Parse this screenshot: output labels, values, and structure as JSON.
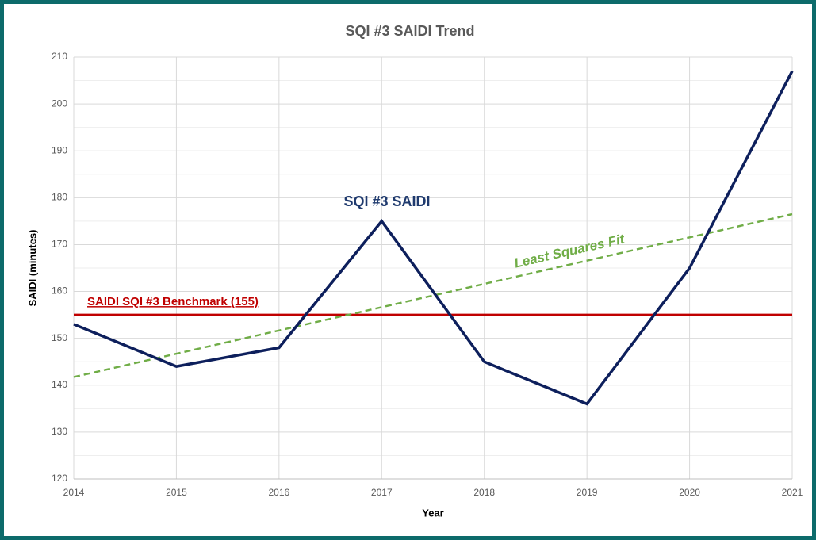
{
  "chart_data": {
    "type": "line",
    "title": "SQI #3 SAIDI Trend",
    "x_label": "Year",
    "y_label": "SAIDI (minutes)",
    "categories": [
      "2014",
      "2015",
      "2016",
      "2017",
      "2018",
      "2019",
      "2020",
      "2021"
    ],
    "series": [
      {
        "name": "SQI #3 SAIDI",
        "color": "#0d1f5c",
        "values": [
          153,
          144,
          148,
          175,
          145,
          136,
          165,
          207
        ]
      }
    ],
    "benchmark": {
      "label": "SAIDI SQI #3 Benchmark (155)",
      "value": 155,
      "color": "#c00000"
    },
    "trend": {
      "label": "Least Squares Fit",
      "color": "#70ad47",
      "values": [
        141.75,
        176.5
      ]
    },
    "ylim": [
      120,
      210
    ],
    "yticks": [
      120,
      130,
      140,
      150,
      160,
      170,
      180,
      190,
      200,
      210
    ],
    "yminor": [
      125,
      135,
      145,
      155,
      165,
      175,
      185,
      195,
      205
    ],
    "grid": true
  }
}
